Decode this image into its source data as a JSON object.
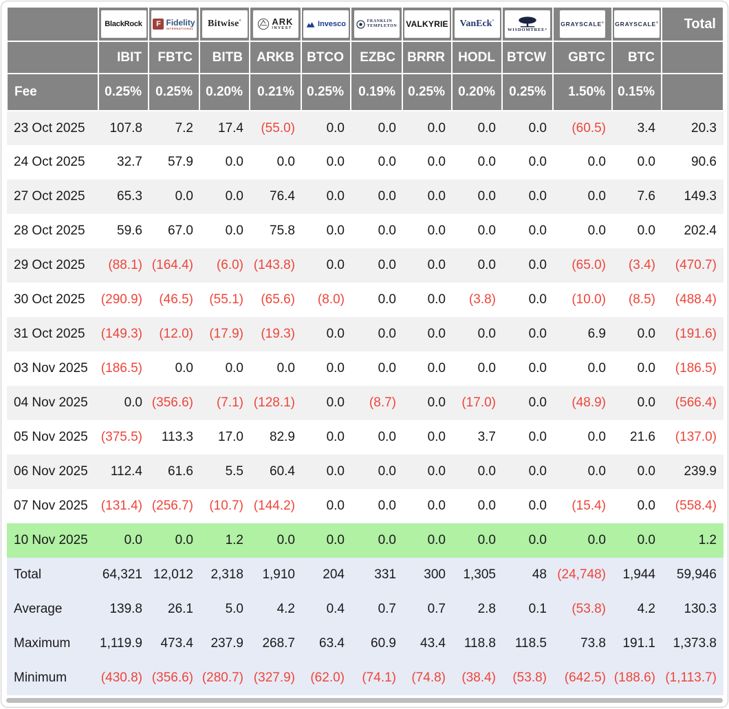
{
  "table": {
    "fee_label": "Fee",
    "total_label": "Total",
    "columns": [
      {
        "brand": "BlackRock",
        "ticker": "IBIT",
        "fee": "0.25%"
      },
      {
        "brand": "Fidelity",
        "brand_sub": "INTERNATIONAL",
        "ticker": "FBTC",
        "fee": "0.25%"
      },
      {
        "brand": "Bitwise",
        "ticker": "BITB",
        "fee": "0.20%"
      },
      {
        "brand": "ARK",
        "brand_sub": "INVEST",
        "ticker": "ARKB",
        "fee": "0.21%"
      },
      {
        "brand": "Invesco",
        "ticker": "BTCO",
        "fee": "0.25%"
      },
      {
        "brand": "FRANKLIN",
        "brand_sub": "TEMPLETON",
        "ticker": "EZBC",
        "fee": "0.19%"
      },
      {
        "brand": "VALKYRIE",
        "ticker": "BRRR",
        "fee": "0.25%"
      },
      {
        "brand": "VanEck",
        "ticker": "HODL",
        "fee": "0.20%"
      },
      {
        "brand": "WISDOMTREE",
        "ticker": "BTCW",
        "fee": "0.25%"
      },
      {
        "brand": "GRAYSCALE",
        "ticker": "GBTC",
        "fee": "1.50%"
      },
      {
        "brand": "GRAYSCALE",
        "ticker": "BTC",
        "fee": "0.15%"
      }
    ],
    "rows": [
      {
        "date": "23 Oct 2025",
        "values": [
          "107.8",
          "7.2",
          "17.4",
          "(55.0)",
          "0.0",
          "0.0",
          "0.0",
          "0.0",
          "0.0",
          "(60.5)",
          "3.4"
        ],
        "total": "20.3"
      },
      {
        "date": "24 Oct 2025",
        "values": [
          "32.7",
          "57.9",
          "0.0",
          "0.0",
          "0.0",
          "0.0",
          "0.0",
          "0.0",
          "0.0",
          "0.0",
          "0.0"
        ],
        "total": "90.6"
      },
      {
        "date": "27 Oct 2025",
        "values": [
          "65.3",
          "0.0",
          "0.0",
          "76.4",
          "0.0",
          "0.0",
          "0.0",
          "0.0",
          "0.0",
          "0.0",
          "7.6"
        ],
        "total": "149.3"
      },
      {
        "date": "28 Oct 2025",
        "values": [
          "59.6",
          "67.0",
          "0.0",
          "75.8",
          "0.0",
          "0.0",
          "0.0",
          "0.0",
          "0.0",
          "0.0",
          "0.0"
        ],
        "total": "202.4"
      },
      {
        "date": "29 Oct 2025",
        "values": [
          "(88.1)",
          "(164.4)",
          "(6.0)",
          "(143.8)",
          "0.0",
          "0.0",
          "0.0",
          "0.0",
          "0.0",
          "(65.0)",
          "(3.4)"
        ],
        "total": "(470.7)"
      },
      {
        "date": "30 Oct 2025",
        "values": [
          "(290.9)",
          "(46.5)",
          "(55.1)",
          "(65.6)",
          "(8.0)",
          "0.0",
          "0.0",
          "(3.8)",
          "0.0",
          "(10.0)",
          "(8.5)"
        ],
        "total": "(488.4)"
      },
      {
        "date": "31 Oct 2025",
        "values": [
          "(149.3)",
          "(12.0)",
          "(17.9)",
          "(19.3)",
          "0.0",
          "0.0",
          "0.0",
          "0.0",
          "0.0",
          "6.9",
          "0.0"
        ],
        "total": "(191.6)"
      },
      {
        "date": "03 Nov 2025",
        "values": [
          "(186.5)",
          "0.0",
          "0.0",
          "0.0",
          "0.0",
          "0.0",
          "0.0",
          "0.0",
          "0.0",
          "0.0",
          "0.0"
        ],
        "total": "(186.5)"
      },
      {
        "date": "04 Nov 2025",
        "values": [
          "0.0",
          "(356.6)",
          "(7.1)",
          "(128.1)",
          "0.0",
          "(8.7)",
          "0.0",
          "(17.0)",
          "0.0",
          "(48.9)",
          "0.0"
        ],
        "total": "(566.4)"
      },
      {
        "date": "05 Nov 2025",
        "values": [
          "(375.5)",
          "113.3",
          "17.0",
          "82.9",
          "0.0",
          "0.0",
          "0.0",
          "3.7",
          "0.0",
          "0.0",
          "21.6"
        ],
        "total": "(137.0)"
      },
      {
        "date": "06 Nov 2025",
        "values": [
          "112.4",
          "61.6",
          "5.5",
          "60.4",
          "0.0",
          "0.0",
          "0.0",
          "0.0",
          "0.0",
          "0.0",
          "0.0"
        ],
        "total": "239.9"
      },
      {
        "date": "07 Nov 2025",
        "values": [
          "(131.4)",
          "(256.7)",
          "(10.7)",
          "(144.2)",
          "0.0",
          "0.0",
          "0.0",
          "0.0",
          "0.0",
          "(15.4)",
          "0.0"
        ],
        "total": "(558.4)"
      },
      {
        "date": "10 Nov 2025",
        "highlight": true,
        "values": [
          "0.0",
          "0.0",
          "1.2",
          "0.0",
          "0.0",
          "0.0",
          "0.0",
          "0.0",
          "0.0",
          "0.0",
          "0.0"
        ],
        "total": "1.2"
      }
    ],
    "summary": [
      {
        "label": "Total",
        "values": [
          "64,321",
          "12,012",
          "2,318",
          "1,910",
          "204",
          "331",
          "300",
          "1,305",
          "48",
          "(24,748)",
          "1,944"
        ],
        "total": "59,946"
      },
      {
        "label": "Average",
        "values": [
          "139.8",
          "26.1",
          "5.0",
          "4.2",
          "0.4",
          "0.7",
          "0.7",
          "2.8",
          "0.1",
          "(53.8)",
          "4.2"
        ],
        "total": "130.3"
      },
      {
        "label": "Maximum",
        "values": [
          "1,119.9",
          "473.4",
          "237.9",
          "268.7",
          "63.4",
          "60.9",
          "43.4",
          "118.8",
          "118.5",
          "73.8",
          "191.1"
        ],
        "total": "1,373.8"
      },
      {
        "label": "Minimum",
        "values": [
          "(430.8)",
          "(356.6)",
          "(280.7)",
          "(327.9)",
          "(62.0)",
          "(74.1)",
          "(74.8)",
          "(38.4)",
          "(53.8)",
          "(642.5)",
          "(188.6)"
        ],
        "total": "(1,113.7)"
      }
    ],
    "colors": {
      "header_bg": "#848484",
      "alt_row_bg": "#f1f1f2",
      "summary_bg": "#e7ebf6",
      "highlight_bg": "#b0f1a4",
      "negative_text": "#ee4539",
      "header_text": "#ffffff",
      "body_text": "#191919"
    }
  }
}
